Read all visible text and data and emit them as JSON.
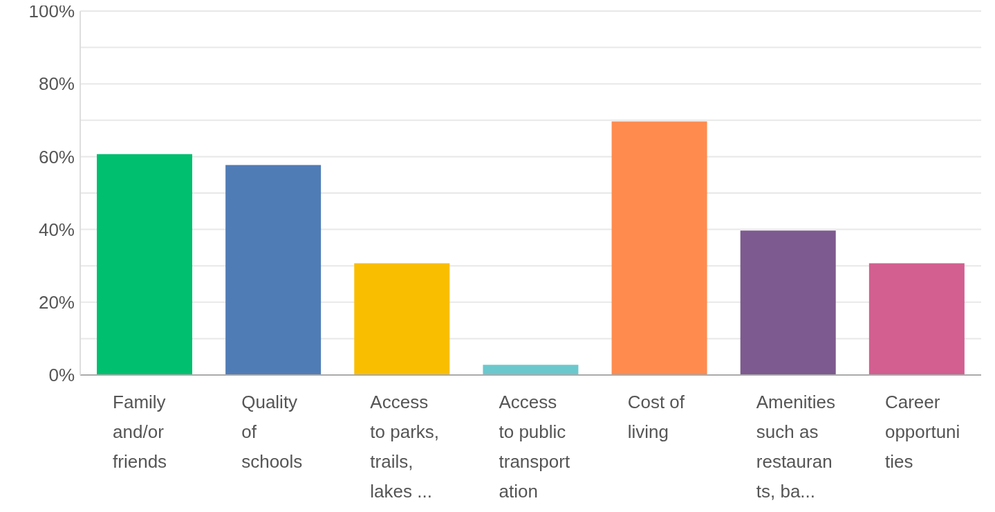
{
  "chart_data": {
    "type": "bar",
    "categories": [
      "Family\nand/or\nfriends",
      "Quality\nof\nschools",
      "Access\nto parks,\ntrails,\nlakes ...",
      "Access\nto public\ntransport\nation",
      "Cost of\nliving",
      "Amenities\nsuch as\nrestauran\nts, ba...",
      "Career\nopportuni\nties"
    ],
    "values": [
      60.7,
      57.7,
      30.7,
      2.8,
      69.7,
      39.7,
      30.7
    ],
    "colors": [
      "#00bf6f",
      "#507cb6",
      "#f9be00",
      "#6bc8cd",
      "#ff8b4f",
      "#7d5a8f",
      "#d25f90"
    ],
    "ylim": [
      0,
      100
    ],
    "yticks": [
      {
        "value": 0,
        "label": "0%"
      },
      {
        "value": 10,
        "label": null
      },
      {
        "value": 20,
        "label": "20%"
      },
      {
        "value": 30,
        "label": null
      },
      {
        "value": 40,
        "label": "40%"
      },
      {
        "value": 50,
        "label": null
      },
      {
        "value": 60,
        "label": "60%"
      },
      {
        "value": 70,
        "label": null
      },
      {
        "value": 80,
        "label": "80%"
      },
      {
        "value": 90,
        "label": null
      },
      {
        "value": 100,
        "label": "100%"
      }
    ],
    "grid": "y"
  }
}
